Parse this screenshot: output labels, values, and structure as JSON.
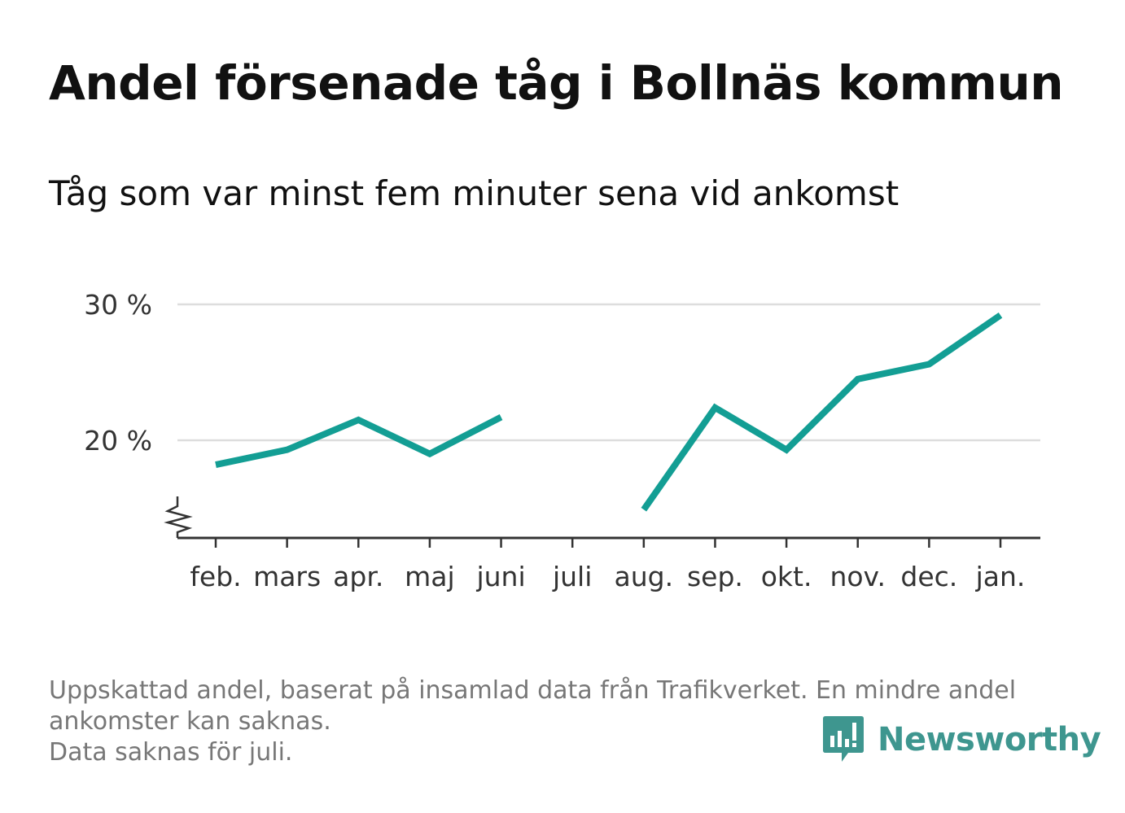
{
  "chart_data": {
    "type": "line",
    "title": "Andel försenade tåg i Bollnäs kommun",
    "subtitle": "Tåg som var minst fem minuter sena vid ankomst",
    "categories": [
      "feb.",
      "mars",
      "apr.",
      "maj",
      "juni",
      "juli",
      "aug.",
      "sep.",
      "okt.",
      "nov.",
      "dec.",
      "jan."
    ],
    "series": [
      {
        "values": [
          18.2,
          19.3,
          21.5,
          19.0,
          21.7,
          null,
          14.9,
          22.4,
          19.3,
          24.5,
          25.6,
          29.2
        ]
      }
    ],
    "yticks": [
      20,
      30
    ],
    "ytick_labels": [
      "20 %",
      "30 %"
    ],
    "ylim": [
      13,
      30.5
    ],
    "y_axis_break": true,
    "grid": true,
    "line_color": "#139e94"
  },
  "footnote": {
    "line1": "Uppskattad andel, baserat på insamlad data från Trafikverket. En mindre andel",
    "line2": "ankomster kan saknas.",
    "line3": "Data saknas för juli."
  },
  "brand": {
    "name": "Newsworthy",
    "icon": "newsworthy-logo-icon",
    "color": "#3e968f"
  }
}
